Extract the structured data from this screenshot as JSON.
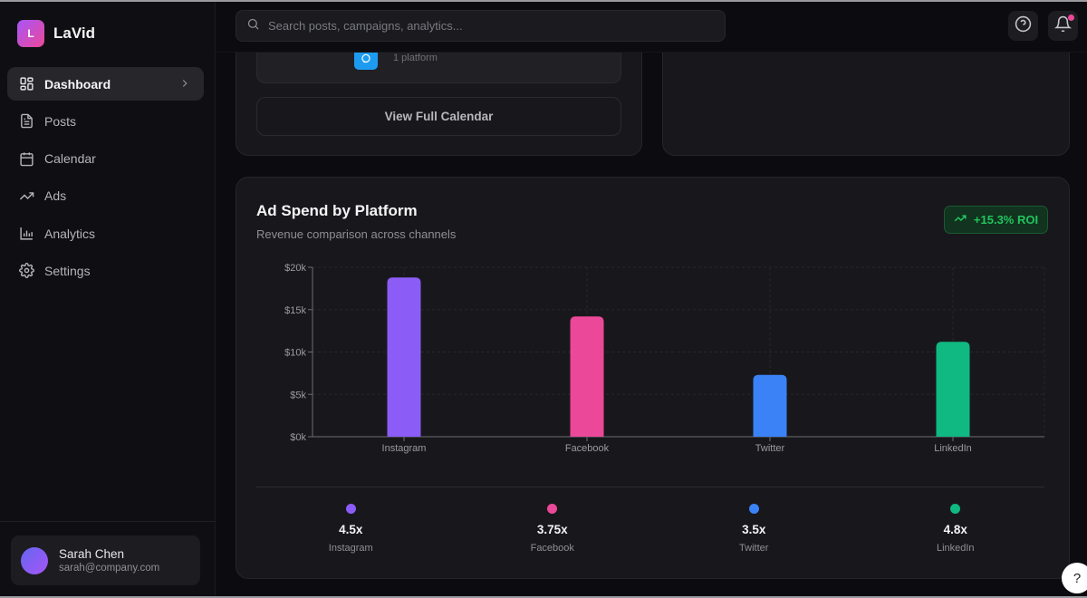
{
  "brand": {
    "logo_letter": "L",
    "name": "LaVid",
    "gradient_start": "#a855f7",
    "gradient_end": "#ec4899"
  },
  "sidebar": {
    "items": [
      {
        "label": "Dashboard",
        "icon": "layout-grid-icon",
        "active": true
      },
      {
        "label": "Posts",
        "icon": "file-text-icon",
        "active": false
      },
      {
        "label": "Calendar",
        "icon": "calendar-icon",
        "active": false
      },
      {
        "label": "Ads",
        "icon": "trending-up-icon",
        "active": false
      },
      {
        "label": "Analytics",
        "icon": "bar-chart-icon",
        "active": false
      },
      {
        "label": "Settings",
        "icon": "gear-icon",
        "active": false
      }
    ],
    "user": {
      "name": "Sarah Chen",
      "email": "sarah@company.com"
    }
  },
  "header": {
    "search_placeholder": "Search posts, campaigns, analytics...",
    "search_value": "",
    "help_icon": "help-circle-icon",
    "notification_icon": "bell-icon",
    "notification_dot_color": "#ec4899"
  },
  "calendar_card": {
    "platform_icon": "twitter-icon",
    "platform_count": "1 platform",
    "view_button": "View Full Calendar"
  },
  "ad_spend": {
    "title": "Ad Spend by Platform",
    "subtitle": "Revenue comparison across channels",
    "roi_badge": "+15.3% ROI",
    "roi_color": "#22c55e",
    "stats": [
      {
        "value": "4.5x",
        "label": "Instagram",
        "color": "#8b5cf6"
      },
      {
        "value": "3.75x",
        "label": "Facebook",
        "color": "#ec4899"
      },
      {
        "value": "3.5x",
        "label": "Twitter",
        "color": "#3b82f6"
      },
      {
        "value": "4.8x",
        "label": "LinkedIn",
        "color": "#10b981"
      }
    ]
  },
  "chart_data": {
    "type": "bar",
    "title": "Ad Spend by Platform",
    "subtitle": "Revenue comparison across channels",
    "categories": [
      "Instagram",
      "Facebook",
      "Twitter",
      "LinkedIn"
    ],
    "values": [
      18800,
      14200,
      7300,
      11200
    ],
    "colors": [
      "#8b5cf6",
      "#ec4899",
      "#3b82f6",
      "#10b981"
    ],
    "ylim": [
      0,
      20000
    ],
    "yticks": [
      0,
      5000,
      10000,
      15000,
      20000
    ],
    "ytick_labels": [
      "$0k",
      "$5k",
      "$10k",
      "$15k",
      "$20k"
    ],
    "xlabel": "",
    "ylabel": "",
    "grid": true,
    "legend": "none"
  },
  "help_fab": "?"
}
